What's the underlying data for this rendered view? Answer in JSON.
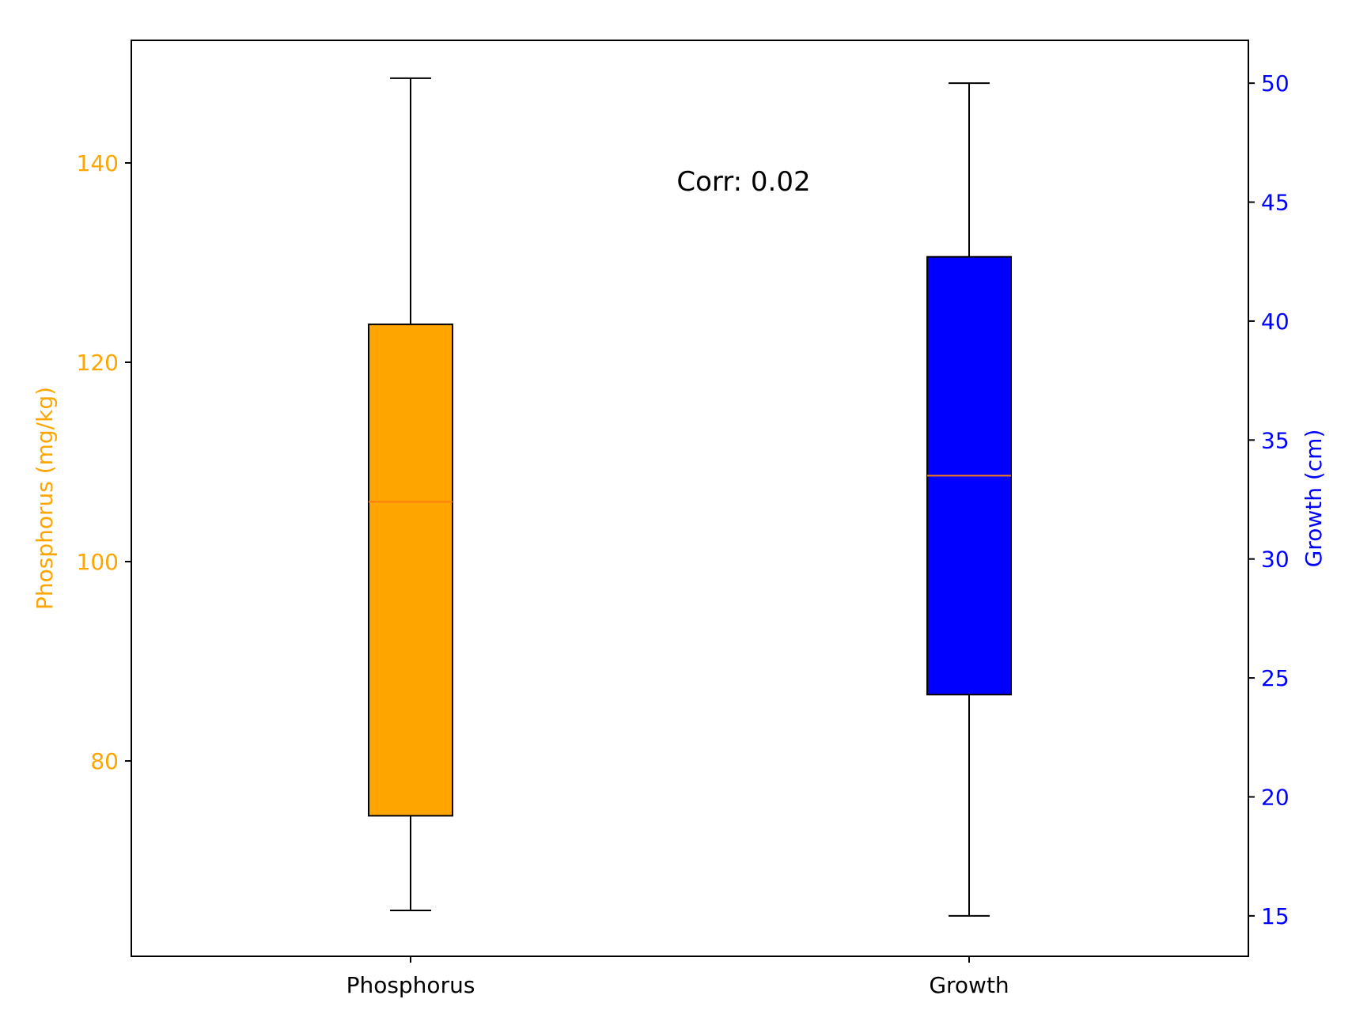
{
  "chart_data": {
    "type": "boxplot",
    "categories": [
      "Phosphorus",
      "Growth"
    ],
    "annotation": "Corr: 0.02",
    "left_axis": {
      "label": "Phosphorus (mg/kg)",
      "color": "#FFA500",
      "ticks": [
        80,
        100,
        120,
        140
      ],
      "tick_labels": [
        "80",
        "100",
        "120",
        "140"
      ],
      "ylim": [
        60.4,
        152.3
      ]
    },
    "right_axis": {
      "label": "Growth (cm)",
      "color": "#0000FF",
      "ticks": [
        15,
        20,
        25,
        30,
        35,
        40,
        45,
        50
      ],
      "tick_labels": [
        "15",
        "20",
        "25",
        "30",
        "35",
        "40",
        "45",
        "50"
      ],
      "ylim": [
        13.3,
        51.8
      ]
    },
    "boxes": [
      {
        "name": "Phosphorus",
        "axis": "left",
        "fill": "#FFA500",
        "median_color": "#FF7F0E",
        "whisker_low": 65,
        "q1": 74.5,
        "median": 106,
        "q3": 123.8,
        "whisker_high": 148.5
      },
      {
        "name": "Growth",
        "axis": "right",
        "fill": "#0000FF",
        "median_color": "#FF7F0E",
        "whisker_low": 15,
        "q1": 24.3,
        "median": 33.5,
        "q3": 42.7,
        "whisker_high": 50
      }
    ]
  }
}
